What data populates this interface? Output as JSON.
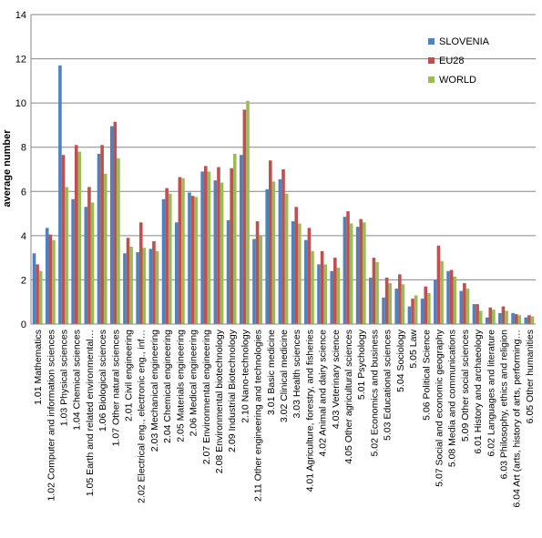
{
  "chart_data": {
    "type": "bar",
    "title": "",
    "xlabel": "",
    "ylabel": "average number",
    "ylim": [
      0,
      14
    ],
    "yticks": [
      0,
      2,
      4,
      6,
      8,
      10,
      12,
      14
    ],
    "grid": true,
    "legend_position": "top-right",
    "categories": [
      "1.01 Mathematics",
      "1.02 Computer and information sciences",
      "1.03 Physical sciences",
      "1.04 Chemical sciences",
      "1.05 Earth and related environmental…",
      "1.06 Biological sciences",
      "1.07 Other natural sciences",
      "2.01 Civil engineering",
      "2.02 Electrical eng., electronic eng., inf…",
      "2.03 Mechanical engineering",
      "2.04 Chemical engineering",
      "2.05 Materials engineering",
      "2.06 Medical engineering",
      "2.07 Environmental engineering",
      "2.08 Environmental biotechnology",
      "2.09 Industrial Biotechnology",
      "2.10 Nano-technology",
      "2.11 Other engineering and technologies",
      "3.01 Basic medicine",
      "3.02 Clinical medicine",
      "3.03 Health sciences",
      "4.01 Agriculture, forestry, and fisheries",
      "4.02 Animal and dairy science",
      "4.03 Veterinary science",
      "4.05 Other agricultural sciences",
      "5.01 Psychology",
      "5.02 Economics and business",
      "5.03 Educational sciences",
      "5.04 Sociology",
      "5.05 Law",
      "5.06 Political Science",
      "5.07 Social and economic geography",
      "5.08 Media and communications",
      "5.09 Other social sciences",
      "6.01 History and archaeology",
      "6.02 Languages and literature",
      "6.03 Philosophy, ethics and religion",
      "6.04 Art (arts, history of arts, performing…",
      "6.05 Other humanities"
    ],
    "series": [
      {
        "name": "SLOVENIA",
        "color": "#4f81bd",
        "values": [
          3.2,
          4.35,
          11.7,
          5.65,
          5.3,
          7.7,
          8.95,
          3.2,
          3.25,
          3.4,
          5.65,
          4.6,
          5.95,
          6.9,
          6.5,
          4.7,
          7.65,
          3.85,
          6.1,
          6.55,
          4.65,
          3.8,
          2.7,
          2.4,
          4.85,
          4.4,
          2.1,
          1.2,
          1.6,
          0.8,
          1.15,
          2.0,
          2.4,
          1.5,
          0.9,
          0.3,
          0.5,
          0.5,
          0.3
        ]
      },
      {
        "name": "EU28",
        "color": "#c0504d",
        "values": [
          2.7,
          4.05,
          7.65,
          8.1,
          6.2,
          8.1,
          9.15,
          3.9,
          4.6,
          3.75,
          6.15,
          6.65,
          5.8,
          7.15,
          7.1,
          7.05,
          9.7,
          4.65,
          7.4,
          7.0,
          5.3,
          4.35,
          3.3,
          3.0,
          5.1,
          4.75,
          3.0,
          2.1,
          2.25,
          1.15,
          1.7,
          3.55,
          2.45,
          1.85,
          0.9,
          0.75,
          0.8,
          0.45,
          0.4
        ]
      },
      {
        "name": "WORLD",
        "color": "#9bbb59",
        "values": [
          2.4,
          3.8,
          6.2,
          7.8,
          5.5,
          6.8,
          7.5,
          3.5,
          3.45,
          3.3,
          5.9,
          6.6,
          5.75,
          6.9,
          6.4,
          7.7,
          10.1,
          4.0,
          6.45,
          5.9,
          4.55,
          3.3,
          2.7,
          2.55,
          4.55,
          4.6,
          2.8,
          1.85,
          1.8,
          1.3,
          1.4,
          2.85,
          2.15,
          1.6,
          0.6,
          0.65,
          0.6,
          0.4,
          0.35
        ]
      }
    ]
  }
}
